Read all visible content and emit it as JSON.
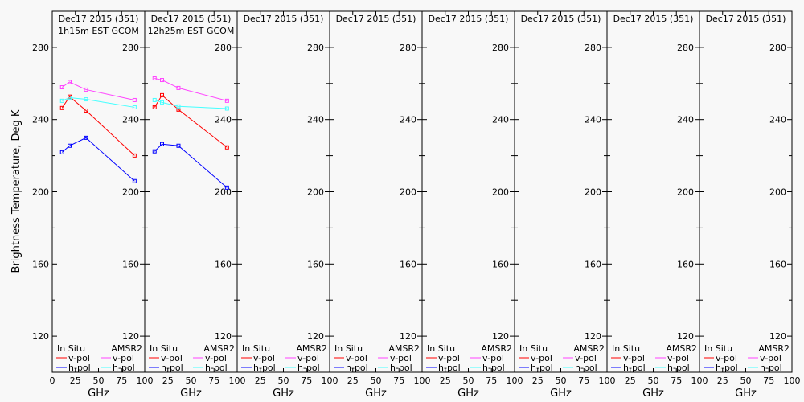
{
  "chart_data": [
    {
      "type": "line",
      "title_lines": [
        "Dec17 2015 (351)",
        "1h15m EST GCOM"
      ],
      "xlabel": "GHz",
      "ylabel": "Brightness Temperature, Deg K",
      "xlim": [
        0,
        100
      ],
      "ylim": [
        100,
        300
      ],
      "xticks": [
        "0",
        "25",
        "50",
        "75",
        "100"
      ],
      "yticks": [
        "120",
        "160",
        "200",
        "240",
        "280"
      ],
      "x": [
        10.65,
        18.7,
        36.5,
        89
      ],
      "series": [
        {
          "name": "In Situ v-pol",
          "color": "#ff0000",
          "values": [
            246.4,
            252.7,
            245.0,
            220.1
          ]
        },
        {
          "name": "In Situ h-pol",
          "color": "#0000ff",
          "values": [
            221.9,
            225.5,
            229.9,
            205.9
          ]
        },
        {
          "name": "AMSR2 v-pol",
          "color": "#ff44ff",
          "values": [
            257.9,
            260.8,
            256.6,
            250.8
          ]
        },
        {
          "name": "AMSR2 h-pol",
          "color": "#44ffff",
          "values": [
            250.4,
            252.1,
            251.2,
            246.8
          ]
        }
      ]
    },
    {
      "type": "line",
      "title_lines": [
        "Dec17 2015 (351)",
        "12h25m EST GCOM"
      ],
      "xlabel": "GHz",
      "xlim": [
        0,
        100
      ],
      "ylim": [
        100,
        300
      ],
      "xticks": [
        "25",
        "50",
        "75",
        "100"
      ],
      "yticks": [
        "120",
        "160",
        "200",
        "240",
        "280"
      ],
      "x": [
        10.65,
        18.7,
        36.5,
        89
      ],
      "series": [
        {
          "name": "In Situ v-pol",
          "color": "#ff0000",
          "values": [
            246.8,
            253.5,
            245.5,
            224.6
          ]
        },
        {
          "name": "In Situ h-pol",
          "color": "#0000ff",
          "values": [
            222.4,
            226.4,
            225.5,
            202.3
          ]
        },
        {
          "name": "AMSR2 v-pol",
          "color": "#ff44ff",
          "values": [
            262.8,
            261.9,
            257.5,
            250.4
          ]
        },
        {
          "name": "AMSR2 h-pol",
          "color": "#44ffff",
          "values": [
            250.8,
            249.5,
            247.3,
            246.1
          ]
        }
      ]
    },
    {
      "type": "line",
      "title_lines": [
        "Dec17 2015 (351)"
      ],
      "xlabel": "GHz",
      "xlim": [
        0,
        100
      ],
      "ylim": [
        100,
        300
      ],
      "xticks": [
        "25",
        "50",
        "75",
        "100"
      ],
      "yticks": [
        "120",
        "160",
        "200",
        "240",
        "280"
      ],
      "x": [],
      "series": []
    },
    {
      "type": "line",
      "title_lines": [
        "Dec17 2015 (351)"
      ],
      "xlabel": "GHz",
      "xlim": [
        0,
        100
      ],
      "ylim": [
        100,
        300
      ],
      "xticks": [
        "25",
        "50",
        "75",
        "100"
      ],
      "yticks": [
        "120",
        "160",
        "200",
        "240",
        "280"
      ],
      "x": [],
      "series": []
    },
    {
      "type": "line",
      "title_lines": [
        "Dec17 2015 (351)"
      ],
      "xlabel": "GHz",
      "xlim": [
        0,
        100
      ],
      "ylim": [
        100,
        300
      ],
      "xticks": [
        "25",
        "50",
        "75",
        "100"
      ],
      "yticks": [
        "120",
        "160",
        "200",
        "240",
        "280"
      ],
      "x": [],
      "series": []
    },
    {
      "type": "line",
      "title_lines": [
        "Dec17 2015 (351)"
      ],
      "xlabel": "GHz",
      "xlim": [
        0,
        100
      ],
      "ylim": [
        100,
        300
      ],
      "xticks": [
        "25",
        "50",
        "75",
        "100"
      ],
      "yticks": [
        "120",
        "160",
        "200",
        "240",
        "280"
      ],
      "x": [],
      "series": []
    },
    {
      "type": "line",
      "title_lines": [
        "Dec17 2015 (351)"
      ],
      "xlabel": "GHz",
      "xlim": [
        0,
        100
      ],
      "ylim": [
        100,
        300
      ],
      "xticks": [
        "25",
        "50",
        "75",
        "100"
      ],
      "yticks": [
        "120",
        "160",
        "200",
        "240",
        "280"
      ],
      "x": [],
      "series": []
    },
    {
      "type": "line",
      "title_lines": [
        "Dec17 2015 (351)"
      ],
      "xlabel": "GHz",
      "xlim": [
        0,
        100
      ],
      "ylim": [
        100,
        300
      ],
      "xticks": [
        "25",
        "50",
        "75",
        "100"
      ],
      "yticks": [
        "120",
        "160",
        "200",
        "240",
        "280"
      ],
      "x": [],
      "series": []
    }
  ],
  "legend": {
    "insitu_title": "In Situ",
    "amsr2_title": "AMSR2",
    "vpol": "v-pol",
    "hpol": "h-pol",
    "colors": {
      "insitu_v": "#ff0000",
      "insitu_h": "#0000ff",
      "amsr2_v": "#ff44ff",
      "amsr2_h": "#44ffff"
    }
  }
}
